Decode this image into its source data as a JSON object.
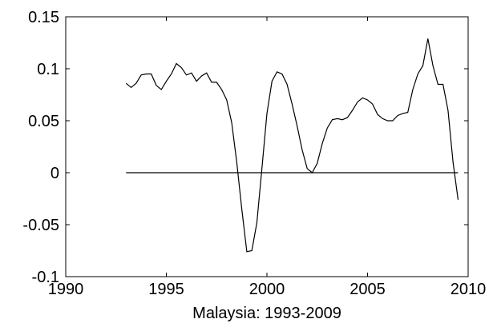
{
  "chart_data": {
    "type": "line",
    "xlabel": "Malaysia: 1993-2009",
    "x": [
      1993,
      1993.25,
      1993.5,
      1993.75,
      1994,
      1994.25,
      1994.5,
      1994.75,
      1995,
      1995.25,
      1995.5,
      1995.75,
      1996,
      1996.25,
      1996.5,
      1996.75,
      1997,
      1997.25,
      1997.5,
      1997.75,
      1998,
      1998.25,
      1998.5,
      1998.75,
      1999,
      1999.25,
      1999.5,
      1999.75,
      2000,
      2000.25,
      2000.5,
      2000.75,
      2001,
      2001.25,
      2001.5,
      2001.75,
      2002,
      2002.25,
      2002.5,
      2002.75,
      2003,
      2003.25,
      2003.5,
      2003.75,
      2004,
      2004.25,
      2004.5,
      2004.75,
      2005,
      2005.25,
      2005.5,
      2005.75,
      2006,
      2006.25,
      2006.5,
      2006.75,
      2007,
      2007.25,
      2007.5,
      2007.75,
      2008,
      2008.25,
      2008.5,
      2008.75,
      2009,
      2009.25,
      2009.5
    ],
    "series": [
      {
        "color": "#000000",
        "values": [
          0.086,
          0.082,
          0.086,
          0.094,
          0.095,
          0.095,
          0.084,
          0.08,
          0.088,
          0.095,
          0.105,
          0.101,
          0.094,
          0.096,
          0.088,
          0.093,
          0.096,
          0.087,
          0.087,
          0.08,
          0.07,
          0.048,
          0.01,
          -0.035,
          -0.076,
          -0.075,
          -0.048,
          0.004,
          0.057,
          0.088,
          0.097,
          0.095,
          0.085,
          0.066,
          0.045,
          0.022,
          0.004,
          0.0,
          0.009,
          0.028,
          0.043,
          0.051,
          0.052,
          0.051,
          0.053,
          0.06,
          0.068,
          0.072,
          0.07,
          0.066,
          0.056,
          0.052,
          0.05,
          0.05,
          0.055,
          0.057,
          0.058,
          0.08,
          0.095,
          0.103,
          0.129,
          0.103,
          0.085,
          0.085,
          0.06,
          0.01,
          -0.026
        ]
      }
    ],
    "reference_line": {
      "x": [
        1993,
        2009.5
      ],
      "y": 0
    },
    "xlim": [
      1990,
      2010
    ],
    "xticks": [
      1990,
      1995,
      2000,
      2005,
      2010
    ],
    "ylim": [
      -0.1,
      0.15
    ],
    "yticks": [
      -0.1,
      -0.05,
      0,
      0.05,
      0.1,
      0.15
    ]
  }
}
